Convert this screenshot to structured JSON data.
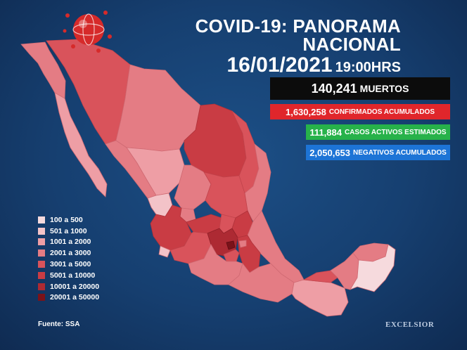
{
  "header": {
    "title": "COVID-19: PANORAMA NACIONAL",
    "date": "16/01/2021",
    "time": "19:00HRS"
  },
  "stats": {
    "deaths": {
      "value": "140,241",
      "label": "MUERTOS",
      "color": "#0c0c0c"
    },
    "confirmed": {
      "value": "1,630,258",
      "label": "CONFIRMADOS ACUMULADOS",
      "color": "#e0262b"
    },
    "active": {
      "value": "111,884",
      "label": "CASOS ACTIVOS ESTIMADOS",
      "color": "#27b24a"
    },
    "negative": {
      "value": "2,050,653",
      "label": "NEGATIVOS ACUMULADOS",
      "color": "#1d74d6"
    }
  },
  "legend": {
    "items": [
      {
        "label": "100 a 500",
        "color": "#f6dadd"
      },
      {
        "label": "501 a 1000",
        "color": "#f3c3c8"
      },
      {
        "label": "1001 a 2000",
        "color": "#ee9ea5"
      },
      {
        "label": "2001 a 3000",
        "color": "#e47c84"
      },
      {
        "label": "3001 a 5000",
        "color": "#d9535b"
      },
      {
        "label": "5001 a 10000",
        "color": "#c93c44"
      },
      {
        "label": "10001 a 20000",
        "color": "#ad2a33"
      },
      {
        "label": "20001 a 50000",
        "color": "#7a1219"
      }
    ]
  },
  "source": "Fuente: SSA",
  "brand": "EXCELSIOR"
}
